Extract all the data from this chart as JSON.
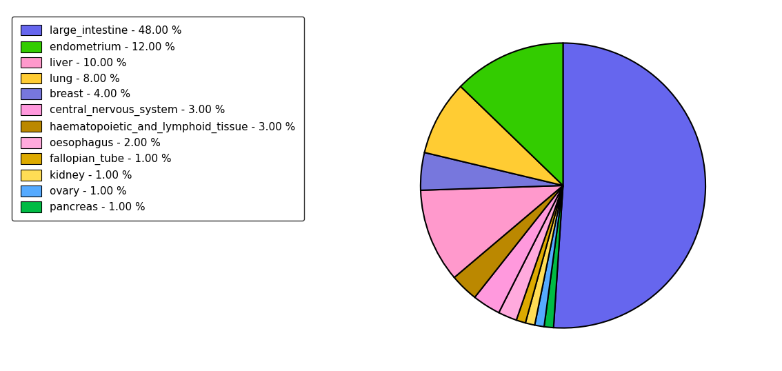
{
  "labels": [
    "large_intestine",
    "endometrium",
    "liver",
    "lung",
    "breast",
    "central_nervous_system",
    "haematopoietic_and_lymphoid_tissue",
    "oesophagus",
    "fallopian_tube",
    "kidney",
    "ovary",
    "pancreas"
  ],
  "values": [
    48,
    12,
    10,
    8,
    4,
    3,
    3,
    2,
    1,
    1,
    1,
    1
  ],
  "colors": [
    "#6666ee",
    "#33cc00",
    "#ff99cc",
    "#ffcc33",
    "#7777dd",
    "#ff99dd",
    "#bb8800",
    "#ffaadd",
    "#ddaa00",
    "#ffdd55",
    "#55aaff",
    "#00bb44"
  ],
  "legend_labels": [
    "large_intestine - 48.00 %",
    "endometrium - 12.00 %",
    "liver - 10.00 %",
    "lung - 8.00 %",
    "breast - 4.00 %",
    "central_nervous_system - 3.00 %",
    "haematopoietic_and_lymphoid_tissue - 3.00 %",
    "oesophagus - 2.00 %",
    "fallopian_tube - 1.00 %",
    "kidney - 1.00 %",
    "ovary - 1.00 %",
    "pancreas - 1.00 %"
  ],
  "figsize": [
    11.34,
    5.38
  ],
  "dpi": 100
}
